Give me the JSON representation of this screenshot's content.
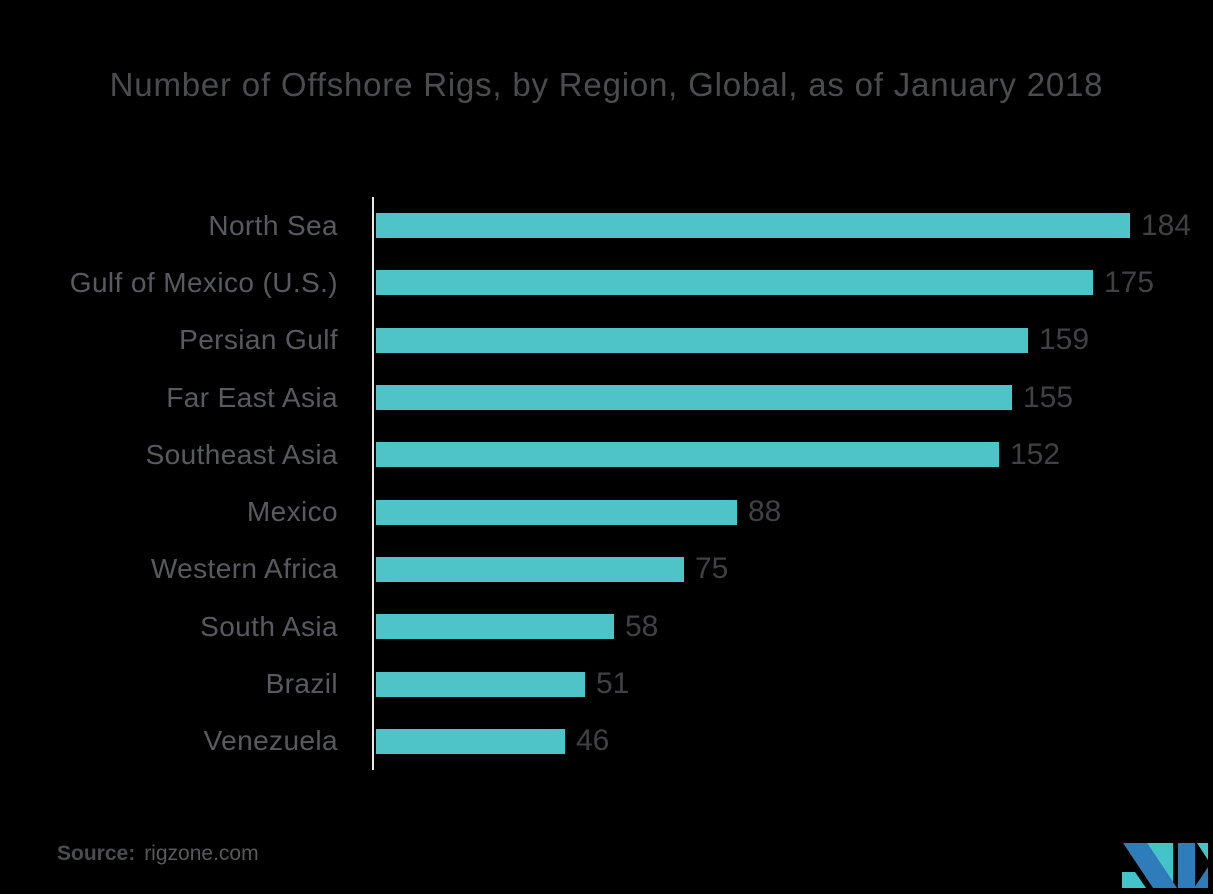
{
  "title": "Number of Offshore Rigs, by Region, Global, as of January 2018",
  "source": {
    "label": "Source:",
    "value": "rigzone.com"
  },
  "colors": {
    "background": "#000000",
    "bar": "#4fc4c8",
    "axis_line": "#e8e8e6",
    "title_text": "#4b4c4e",
    "category_text": "#595a5d",
    "value_text": "#414144",
    "logo_teal": "#44c3c9",
    "logo_blue": "#2e7cb9"
  },
  "chart_data": {
    "type": "bar",
    "orientation": "horizontal",
    "title": "Number of Offshore Rigs, by Region, Global, as of January 2018",
    "xlabel": "",
    "ylabel": "",
    "xlim": [
      0,
      200
    ],
    "grid": false,
    "legend": false,
    "value_labels_shown": true,
    "categories": [
      "North Sea",
      "Gulf of Mexico (U.S.)",
      "Persian Gulf",
      "Far East Asia",
      "Southeast Asia",
      "Mexico",
      "Western Africa",
      "South Asia",
      "Brazil",
      "Venezuela"
    ],
    "values": [
      184,
      175,
      159,
      155,
      152,
      88,
      75,
      58,
      51,
      46
    ]
  }
}
